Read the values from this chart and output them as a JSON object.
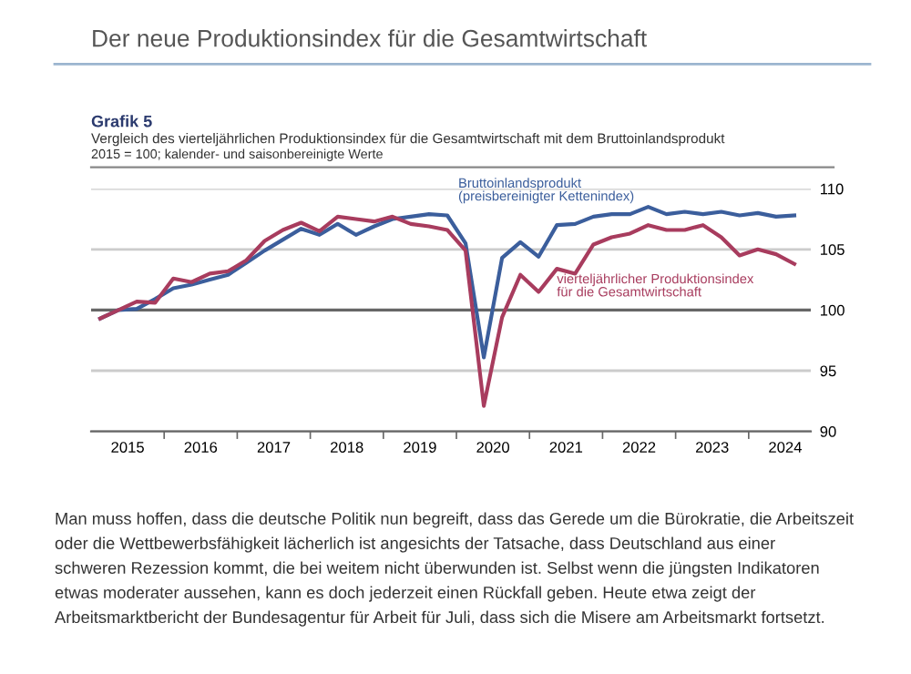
{
  "chart_data": {
    "type": "line",
    "title": "Der neue Produktionsindex für die Gesamtwirtschaft",
    "subtitle": "Grafik 5",
    "annotations": [
      "Vergleich des vierteljährlichen Produktionsindex für die Gesamtwirtschaft mit dem Bruttoinlandsprodukt",
      "2015 = 100; kalender- und saisonbereinigte Werte",
      "Man muss hoffen, dass die deutsche Politik nun begreift, dass das Gerede um die Bürokratie, die Arbeitszeit\noder die Wettbewerbsfähigkeit lächerlich ist angesichts der Tatsache, dass Deutschland aus einer\nschweren Rezession kommt, die bei weitem nicht überwunden ist. Selbst wenn die jüngsten Indikatoren\netwas moderater aussehen, kann es doch jederzeit einen Rückfall geben. Heute etwa zeigt der\nArbeitsmarktbericht der Bundesagentur für Arbeit für Juli, dass sich die Misere am Arbeitsmarkt fortsetzt."
    ],
    "x": [
      2015.125,
      2015.375,
      2015.625,
      2015.875,
      2016.125,
      2016.375,
      2016.625,
      2016.875,
      2017.125,
      2017.375,
      2017.625,
      2017.875,
      2018.125,
      2018.375,
      2018.625,
      2018.875,
      2019.125,
      2019.375,
      2019.625,
      2019.875,
      2020.125,
      2020.375,
      2020.625,
      2020.875,
      2021.125,
      2021.375,
      2021.625,
      2021.875,
      2022.125,
      2022.375,
      2022.625,
      2022.875,
      2023.125,
      2023.375,
      2023.625,
      2023.875,
      2024.125,
      2024.375,
      2024.625
    ],
    "series": [
      {
        "name": "Bruttoinlandsprodukt\n(preisbereinigter Kettenindex)",
        "color": "#3b5e9c",
        "values": [
          99.3,
          100.0,
          100.1,
          100.9,
          101.8,
          102.1,
          102.5,
          102.9,
          103.9,
          104.9,
          105.8,
          106.7,
          106.2,
          107.1,
          106.2,
          106.9,
          107.5,
          107.7,
          107.9,
          107.8,
          105.5,
          96.1,
          104.3,
          105.6,
          104.4,
          107.0,
          107.1,
          107.7,
          107.9,
          107.9,
          108.5,
          107.9,
          108.1,
          107.9,
          108.1,
          107.8,
          108.0,
          107.7,
          107.8
        ]
      },
      {
        "name": "vierteljährlicher Produktionsindex\nfür die Gesamtwirtschaft",
        "color": "#a83c5e",
        "values": [
          99.3,
          100.0,
          100.7,
          100.6,
          102.6,
          102.3,
          103.0,
          103.2,
          104.1,
          105.7,
          106.6,
          107.2,
          106.5,
          107.7,
          107.5,
          107.3,
          107.7,
          107.1,
          106.9,
          106.6,
          104.9,
          92.1,
          99.4,
          102.9,
          101.5,
          103.4,
          103.0,
          105.4,
          106.0,
          106.3,
          107.0,
          106.6,
          106.6,
          107.0,
          106.0,
          104.5,
          105.0,
          104.6,
          103.8
        ]
      }
    ],
    "xlim": [
      2015.0,
      2024.85
    ],
    "xticks": [
      {
        "value": 2015.5,
        "label": "2015"
      },
      {
        "value": 2016.5,
        "label": "2016"
      },
      {
        "value": 2017.5,
        "label": "2017"
      },
      {
        "value": 2018.5,
        "label": "2018"
      },
      {
        "value": 2019.5,
        "label": "2019"
      },
      {
        "value": 2020.5,
        "label": "2020"
      },
      {
        "value": 2021.5,
        "label": "2021"
      },
      {
        "value": 2022.5,
        "label": "2022"
      },
      {
        "value": 2023.5,
        "label": "2023"
      },
      {
        "value": 2024.5,
        "label": "2024"
      }
    ],
    "ylim": [
      90,
      110
    ],
    "yticks": [
      90,
      95,
      100,
      105,
      110
    ],
    "ref_lines": [
      {
        "axis": "y",
        "value": 100,
        "color": "#666666"
      }
    ],
    "grid": "y",
    "legend": false,
    "marker": "none",
    "line_style": "solid"
  }
}
